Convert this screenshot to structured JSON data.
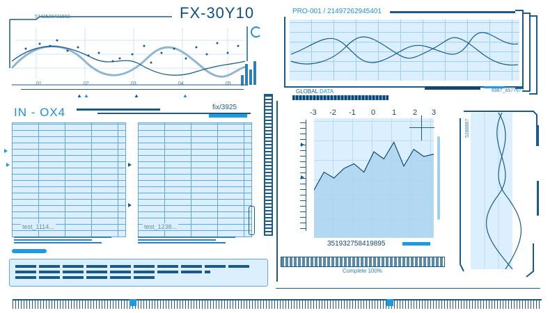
{
  "header": {
    "title": "FX-30Y10",
    "top_id": "5742528721502",
    "pro_label": "PRO-001 / 21497262945401",
    "global_data": "GLOBAL",
    "global_data_accent": "DATA",
    "right_code": "6987_6577677"
  },
  "top_chart": {
    "x_ticks": [
      "01",
      "02",
      "03",
      "04",
      "05"
    ],
    "markers": [
      "▲",
      "▲",
      "▲",
      "▲"
    ]
  },
  "in_panel": {
    "title": "IN - OX4",
    "fix_label": "fix/3925",
    "left_placeholder": "test_1114...",
    "right_placeholder": "test_1238..."
  },
  "area_chart": {
    "x_ticks": [
      "-3",
      "-2",
      "-1",
      "0",
      "1",
      "2",
      "3"
    ],
    "code": "351932758419895"
  },
  "progress": {
    "label": "Complete",
    "value": "100%"
  },
  "right_vertical": {
    "label": "5288867"
  },
  "chart_data": {
    "type": "area",
    "x": [
      -3,
      -2.5,
      -2,
      -1.5,
      -1,
      -0.5,
      0,
      0.5,
      1,
      1.5,
      2,
      2.5,
      3
    ],
    "values": [
      40,
      55,
      50,
      58,
      62,
      55,
      72,
      66,
      80,
      60,
      74,
      68,
      70
    ],
    "ylim": [
      0,
      100
    ],
    "xlim": [
      -3,
      3
    ]
  }
}
